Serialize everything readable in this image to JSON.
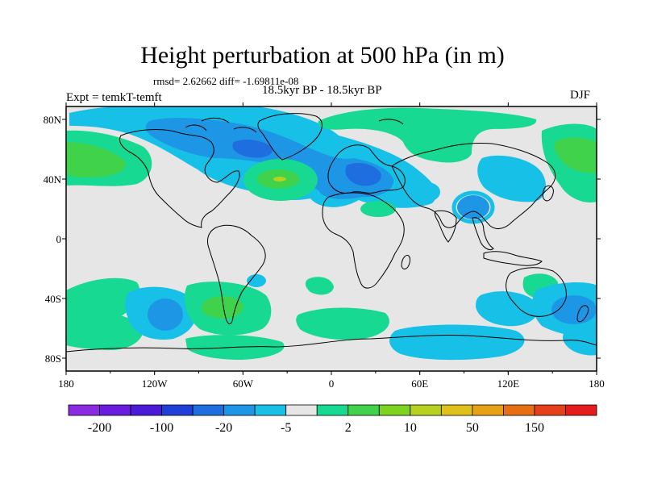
{
  "title": "Height perturbation at 500 hPa (in m)",
  "stats": "rmsd= 2.62662 diff= -1.69811e-08",
  "subtitle": "18.5kyr BP - 18.5kyr BP",
  "experiment": "Expt = temkT-temft",
  "season": "DJF",
  "lat_labels": [
    "80N",
    "40N",
    "0",
    "40S",
    "80S"
  ],
  "lon_labels": [
    "180",
    "120W",
    "60W",
    "0",
    "60E",
    "120E",
    "180"
  ],
  "colorbar": {
    "colors": [
      "#8a2be2",
      "#6a1be0",
      "#4b1ad8",
      "#1f3fd6",
      "#1e6ee0",
      "#1e96e6",
      "#17c0e6",
      "#e6e6e6",
      "#17d991",
      "#3fd24a",
      "#7ed321",
      "#b8d11e",
      "#e0c11c",
      "#e6a117",
      "#e66f13",
      "#e5401a",
      "#e51c1c"
    ],
    "labels": [
      "-200",
      "-100",
      "-20",
      "-5",
      "2",
      "10",
      "50",
      "150"
    ]
  },
  "palette": {
    "background": "#e6e6e6",
    "green": "#17d991",
    "lightgreen": "#3fd24a",
    "yellowgreen": "#b8d11e",
    "cyan": "#17c0e6",
    "skyblue": "#1e96e6",
    "blue": "#1e6ee0"
  }
}
